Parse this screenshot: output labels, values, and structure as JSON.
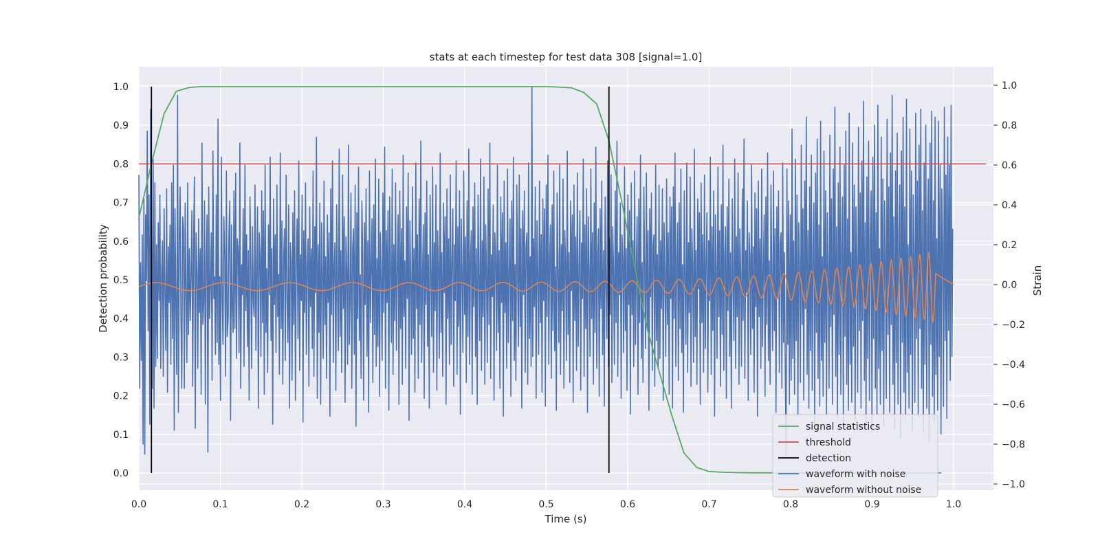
{
  "chart_data": {
    "type": "line",
    "title": "stats at each timestep for test data 308 [signal=1.0]",
    "xlabel": "Time (s)",
    "ylabel": "Detection probability",
    "y2label": "Strain",
    "xlim": [
      0.0,
      1.05
    ],
    "ylim": [
      -0.045,
      1.05
    ],
    "y2lim": [
      -1.03,
      1.1
    ],
    "xticks": [
      "0.0",
      "0.1",
      "0.2",
      "0.3",
      "0.4",
      "0.5",
      "0.6",
      "0.7",
      "0.8",
      "0.9",
      "1.0"
    ],
    "yticks": [
      "0.0",
      "0.1",
      "0.2",
      "0.3",
      "0.4",
      "0.5",
      "0.6",
      "0.7",
      "0.8",
      "0.9",
      "1.0"
    ],
    "y2ticks": [
      "−1.0",
      "−0.8",
      "−0.6",
      "−0.4",
      "−0.2",
      "0.0",
      "0.2",
      "0.4",
      "0.6",
      "0.8",
      "1.0"
    ],
    "grid": true,
    "legend_position": "lower-right",
    "colors": {
      "background": "#eaeaf2",
      "grid": "#ffffff",
      "signal_statistics": "#55a868",
      "threshold": "#c44e52",
      "detection": "#000000",
      "waveform_with_noise": "#4c72b0",
      "waveform_without_noise": "#dd8452"
    },
    "series": [
      {
        "name": "signal statistics",
        "axis": "left",
        "x": [
          0.0,
          0.0154,
          0.031,
          0.046,
          0.062,
          0.077,
          0.092,
          0.108,
          0.123,
          0.5,
          0.515,
          0.531,
          0.546,
          0.562,
          0.577,
          0.592,
          0.608,
          0.623,
          0.639,
          0.654,
          0.669,
          0.685,
          0.7,
          0.715,
          0.731,
          0.75,
          0.8,
          0.9,
          0.985
        ],
        "y": [
          0.66,
          0.8,
          0.93,
          0.988,
          0.998,
          1.0,
          1.0,
          1.0,
          1.0,
          1.0,
          0.999,
          0.997,
          0.985,
          0.955,
          0.86,
          0.71,
          0.54,
          0.38,
          0.26,
          0.15,
          0.052,
          0.014,
          0.004,
          0.002,
          0.001,
          0.0005,
          0.0003,
          0.0002,
          0.0002
        ]
      },
      {
        "name": "threshold",
        "axis": "left",
        "x": [
          0.0,
          1.04
        ],
        "y": [
          0.8,
          0.8
        ]
      },
      {
        "name": "detection",
        "axis": "left",
        "vlines": [
          0.0154,
          0.577
        ],
        "ymin": 0.0,
        "ymax": 1.0
      },
      {
        "name": "waveform with noise",
        "axis": "right",
        "x_start": 0.0,
        "x_end": 0.999,
        "y": [
          0.55,
          -0.52,
          0.11,
          -0.38,
          0.25,
          -0.8,
          0.43,
          -0.85,
          0.35,
          0.02,
          0.77,
          -0.23,
          0.45,
          -0.7,
          0.88,
          0.28,
          -0.52,
          0.63,
          -0.62,
          0.51,
          -0.41,
          0.2,
          -0.37,
          0.31,
          -0.08,
          0.45,
          -0.42,
          0.06,
          0.22,
          -0.46,
          0.38,
          -0.05,
          -0.33,
          0.48,
          -0.54,
          0.19,
          -0.09,
          0.3,
          -0.4,
          0.51,
          -0.27,
          0.6,
          -0.73,
          0.38,
          -0.12,
          -0.45,
          0.95,
          -0.64,
          0.23,
          0.49,
          -0.15,
          -0.52,
          0.34,
          0.28,
          -0.52,
          0.41,
          -0.06,
          -0.39,
          0.51,
          -0.25,
          0.18,
          -0.18,
          0.04,
          0.37,
          -0.51,
          0.22,
          0.54,
          -0.72,
          0.26,
          0.06,
          -0.42,
          0.33,
          -0.14,
          0.18,
          -0.55,
          0.71,
          -0.2,
          -0.1,
          0.42,
          -0.6,
          0.12,
          0.35,
          -0.84,
          0.49,
          -0.17,
          0.01,
          0.26,
          -0.48,
          0.67,
          -0.07,
          0.04,
          -0.35,
          0.45,
          -0.29,
          0.83,
          -0.4,
          0.04,
          -0.58,
          0.64,
          -0.08,
          -0.3,
          0.34,
          0.14,
          -0.46,
          0.57,
          -0.26,
          -0.18,
          0.25,
          0.42,
          -0.68,
          0.3,
          -0.12,
          -0.24,
          0.47,
          -0.22,
          0.56,
          -0.37,
          0.23,
          0.17,
          -0.34,
          0.71,
          -0.52,
          0.1,
          -0.05,
          0.38,
          -0.41,
          0.6,
          -0.13,
          0.25,
          -0.31,
          0.17,
          -0.58,
          0.44,
          0.1,
          -0.42,
          0.29,
          -0.09,
          -0.16,
          0.5,
          -0.33,
          0.07,
          0.39,
          -0.62,
          0.26,
          0.14,
          -0.36,
          0.47,
          -0.19,
          0.37,
          -0.55,
          0.6,
          -0.24,
          0.08,
          -0.44,
          0.3,
          -0.05,
          0.64,
          -0.28,
          0.18,
          -0.7,
          0.43,
          -0.1,
          0.25,
          -0.34,
          0.5,
          -0.16,
          0.05,
          -0.45,
          0.66,
          -0.22,
          0.32,
          -0.5,
          0.14,
          0.28,
          -0.38,
          0.55,
          -0.07,
          -0.29,
          0.4,
          -0.62,
          0.21,
          0.12,
          -0.48,
          0.36,
          -0.2,
          0.47,
          -0.58,
          0.1,
          0.33,
          -0.27,
          0.62,
          -0.43,
          0.15,
          -0.08,
          0.45,
          -0.69,
          0.27,
          -0.14,
          0.51,
          -0.35,
          0.08,
          0.23,
          -0.51,
          0.39,
          -0.11,
          0.18,
          -0.32,
          0.57,
          -0.46,
          0.29,
          -0.04,
          0.74,
          -0.57,
          0.2,
          -0.24,
          0.41,
          -0.6,
          0.31,
          0.06,
          -0.37,
          0.52,
          -0.2,
          0.14,
          -0.47,
          0.35,
          -0.09,
          0.26,
          -0.66,
          0.48,
          -0.15,
          0.62,
          -0.39,
          0.1,
          0.21,
          -0.53,
          0.4,
          -0.02,
          -0.33,
          0.68,
          -0.26,
          0.17,
          -0.44,
          0.55,
          -0.12,
          0.34,
          -0.59,
          0.24,
          0.08,
          -0.4,
          0.7,
          -0.3,
          -0.06,
          0.46,
          -0.52,
          0.19,
          0.28,
          -0.35,
          0.5,
          -0.71,
          0.36,
          -0.17,
          0.59,
          -0.28,
          0.05,
          -0.47,
          0.42,
          0.16,
          -0.58,
          0.31,
          -0.1,
          0.48,
          -0.36,
          0.22,
          -0.64,
          0.57,
          -0.19,
          0.09,
          0.33,
          -0.49,
          0.4,
          -0.25,
          0.63,
          -0.41,
          0.13,
          -0.31,
          0.53,
          -0.56,
          0.26,
          0.02,
          -0.38,
          0.46,
          -0.14,
          0.69,
          -0.52,
          0.27,
          -0.09,
          0.37,
          -0.63,
          0.44,
          0.1,
          -0.29,
          0.58,
          -0.45,
          0.2,
          -0.18,
          0.51,
          -0.33,
          0.07,
          0.35,
          -0.6,
          0.47,
          -0.22,
          0.28,
          -0.5,
          0.65,
          -0.16,
          0.12,
          -0.42,
          0.39,
          -0.07,
          0.56,
          -0.68,
          0.32,
          0.03,
          -0.35,
          0.49,
          -0.27,
          0.18,
          -0.54,
          0.61,
          -0.12,
          0.25,
          -0.47,
          0.43,
          -0.2,
          0.72,
          -0.39,
          0.06,
          0.3,
          -0.57,
          0.36,
          -0.1,
          0.52,
          -0.31,
          0.15,
          -0.62,
          0.45,
          0.04,
          -0.26,
          0.59,
          -0.44,
          0.21,
          -0.13,
          0.5,
          -0.53,
          0.27,
          0.09,
          -0.37,
          0.66,
          -0.24,
          0.16,
          -0.46,
          0.41,
          -0.04,
          0.34,
          -0.6,
          0.48,
          -0.17,
          0.23,
          -0.4,
          0.55,
          -0.3,
          0.11,
          0.38,
          -0.51,
          0.2,
          -0.08,
          0.62,
          -0.45,
          0.29,
          -0.21,
          0.47,
          -0.65,
          0.33,
          0.05,
          -0.34,
          0.57,
          -0.15,
          0.24,
          -0.49,
          0.42,
          -0.26,
          0.68,
          -0.4,
          0.13,
          0.27,
          -0.55,
          0.39,
          -0.11,
          0.51,
          -0.36,
          0.18,
          -0.6,
          0.45,
          0.02,
          -0.28,
          0.63,
          -0.43,
          0.22,
          -0.16,
          0.54,
          -0.5,
          0.3,
          0.08,
          -0.39,
          0.48,
          -0.2,
          0.71,
          -0.47,
          0.15,
          -0.06,
          0.4,
          -0.58,
          0.26,
          0.12,
          -0.33,
          0.6,
          -0.24,
          0.17,
          -0.52,
          0.44,
          -0.09,
          0.36,
          -0.66,
          0.52,
          -0.14,
          0.21,
          -0.42,
          0.58,
          -0.29,
          0.07,
          0.33,
          -0.56,
          0.42,
          -0.18,
          0.64,
          -0.38,
          0.1,
          -0.48,
          0.5,
          0.04,
          -0.31,
          0.55,
          -0.21,
          0.28,
          -0.62,
          0.37,
          -0.05,
          0.47,
          -0.44,
          0.19,
          0.26,
          -0.5,
          0.61,
          -0.27,
          0.14,
          -0.41,
          0.99,
          -0.36,
          0.23,
          -0.11,
          0.49,
          -0.57,
          0.32,
          0.06,
          -0.35,
          0.52,
          -0.19,
          0.25,
          -0.54,
          0.43,
          -0.08,
          0.38,
          -0.61,
          0.5,
          -0.16,
          0.65,
          -0.4,
          0.12,
          0.3,
          -0.47,
          0.4,
          -0.23,
          0.57,
          -0.33,
          0.09,
          -0.63,
          0.46,
          0.03,
          -0.29,
          0.6,
          -0.45,
          0.2,
          -0.13,
          0.53,
          -0.52,
          0.27,
          0.11,
          -0.38,
          0.67,
          -0.25,
          0.16,
          -0.49,
          0.42,
          -0.03,
          0.35,
          -0.59,
          0.5,
          -0.18,
          0.24,
          -0.43,
          0.56,
          -0.31,
          0.1,
          0.37,
          -0.53,
          0.21,
          -0.07,
          0.63,
          -0.46,
          0.3,
          -0.22,
          0.48,
          -0.64,
          0.34,
          0.06,
          -0.36,
          0.58,
          -0.17,
          0.26,
          -0.5,
          0.41,
          -0.24,
          0.69,
          -0.42,
          0.14,
          0.28,
          -0.56,
          0.38,
          -0.12,
          0.52,
          -0.35,
          0.17,
          -0.61,
          0.44,
          0.01,
          -0.27,
          0.62,
          -0.41,
          0.23,
          -0.15,
          0.55,
          -0.49,
          0.29,
          0.07,
          -0.4,
          0.47,
          -0.19,
          0.72,
          -0.46,
          0.16,
          -0.05,
          0.41,
          -0.57,
          0.25,
          0.13,
          -0.34,
          0.59,
          -0.23,
          0.18,
          -0.53,
          0.45,
          -0.1,
          0.37,
          -0.65,
          0.51,
          -0.15,
          0.22,
          -0.41,
          0.57,
          -0.3,
          0.08,
          0.34,
          -0.55,
          0.43,
          -0.19,
          0.65,
          -0.37,
          0.11,
          -0.49,
          0.49,
          0.05,
          -0.32,
          0.56,
          -0.22,
          0.27,
          -0.63,
          0.38,
          -0.06,
          0.46,
          -0.43,
          0.2,
          0.25,
          -0.51,
          0.6,
          -0.28,
          0.15,
          -0.42,
          0.5,
          -0.37,
          0.22,
          -0.12,
          0.48,
          -0.58,
          0.31,
          0.05,
          -0.36,
          0.53,
          -0.2,
          0.26,
          -0.55,
          0.44,
          -0.07,
          0.39,
          -0.62,
          0.49,
          -0.17,
          0.66,
          -0.41,
          0.13,
          0.31,
          -0.48,
          0.41,
          -0.22,
          0.58,
          -0.34,
          0.1,
          -0.64,
          0.47,
          0.02,
          -0.3,
          0.61,
          -0.44,
          0.21,
          -0.14,
          0.54,
          -0.51,
          0.28,
          0.1,
          -0.39,
          0.68,
          -0.26,
          0.17,
          -0.5,
          0.43,
          -0.02,
          0.36,
          -0.6,
          0.51,
          -0.19,
          0.25,
          -0.44,
          0.55,
          -0.32,
          0.11,
          0.36,
          -0.54,
          0.22,
          -0.08,
          0.64,
          -0.45,
          0.29,
          -0.23,
          0.47,
          -0.66,
          0.35,
          0.07,
          -0.37,
          0.59,
          -0.16,
          0.27,
          -0.51,
          0.4,
          -0.25,
          0.7,
          -0.43,
          0.15,
          0.29,
          -0.57,
          0.39,
          -0.13,
          0.53,
          -0.36,
          0.16,
          -0.62,
          0.43,
          0.0,
          -0.28,
          0.63,
          -0.42,
          0.24,
          -0.16,
          0.56,
          -0.5,
          0.28,
          0.06,
          -0.41,
          0.48,
          -0.18,
          0.73,
          -0.47,
          0.17,
          -0.04,
          0.42,
          -0.58,
          0.26,
          0.14,
          -0.35,
          0.6,
          -0.22,
          0.19,
          -0.54,
          0.46,
          -0.11,
          0.38,
          -0.66,
          0.52,
          -0.16,
          0.23,
          -0.42,
          0.58,
          -0.31,
          0.09,
          0.35,
          -0.56,
          0.44,
          -0.2,
          0.66,
          -0.38,
          0.12,
          -0.5,
          0.5,
          0.06,
          -0.33,
          0.57,
          -0.23,
          0.28,
          -0.64,
          0.39,
          -0.07,
          0.47,
          -0.44,
          0.21,
          0.26,
          -0.52,
          0.61,
          -0.29,
          0.16,
          -0.43,
          -0.86,
          0.58,
          -0.3,
          0.42,
          -0.6,
          0.35,
          -0.48,
          0.78,
          -0.37,
          0.22,
          -0.55,
          0.63,
          -0.28,
          0.45,
          -0.66,
          0.31,
          0.07,
          -0.49,
          0.7,
          -0.2,
          0.38,
          -0.58,
          0.52,
          -0.12,
          0.84,
          -0.45,
          0.27,
          -0.62,
          0.49,
          -0.33,
          0.65,
          -0.53,
          0.18,
          0.41,
          -0.7,
          0.56,
          -0.24,
          0.73,
          -0.47,
          0.3,
          -0.61,
          0.82,
          -0.38,
          0.14,
          -0.56,
          0.67,
          -0.29,
          0.47,
          -0.65,
          0.36,
          0.1,
          -0.52,
          0.75,
          -0.21,
          0.43,
          -0.6,
          0.58,
          -0.15,
          0.89,
          -0.46,
          0.29,
          -0.67,
          0.51,
          -0.35,
          0.69,
          -0.55,
          0.2,
          0.44,
          -0.72,
          0.6,
          -0.26,
          0.77,
          -0.5,
          0.33,
          -0.63,
          0.86,
          -0.4,
          0.16,
          -0.59,
          0.71,
          -0.31,
          0.5,
          -0.68,
          0.39,
          0.12,
          -0.54,
          0.79,
          -0.23,
          0.46,
          -0.62,
          0.62,
          -0.18,
          0.92,
          -0.48,
          0.31,
          -0.7,
          0.54,
          -0.37,
          0.72,
          -0.58,
          0.22,
          0.47,
          -0.74,
          0.64,
          -0.27,
          0.8,
          -0.52,
          0.36,
          -0.65,
          0.9,
          -0.42,
          0.18,
          -0.6,
          0.74,
          -0.33,
          0.53,
          -0.71,
          0.42,
          0.14,
          -0.57,
          0.83,
          -0.25,
          0.49,
          -0.64,
          0.66,
          -0.2,
          0.95,
          -0.5,
          0.34,
          -0.72,
          0.57,
          -0.39,
          0.76,
          -0.6,
          0.25,
          0.5,
          -0.77,
          0.67,
          -0.29,
          0.84,
          -0.54,
          0.39,
          -0.67,
          0.93,
          -0.44,
          0.2,
          -0.62,
          0.78,
          -0.35,
          0.57,
          -0.73,
          0.45,
          0.17,
          -0.59,
          0.86,
          -0.27,
          0.52,
          -0.66,
          0.7,
          -0.22,
          0.88,
          -0.52,
          0.37,
          -0.74,
          0.61,
          -0.4,
          0.8,
          -0.62,
          0.28,
          0.53,
          -0.79,
          0.71,
          -0.3,
          0.87,
          -0.56,
          0.42,
          -0.69,
          0.84,
          -0.45,
          0.23,
          -0.63,
          0.82,
          -0.36,
          0.6,
          -0.75,
          0.48,
          0.2,
          -0.61,
          0.89,
          -0.28,
          0.55,
          -0.67,
          0.74,
          -0.23,
          0.6,
          -0.48,
          0.9,
          -0.36,
          0.28
        ]
      },
      {
        "name": "waveform without noise",
        "axis": "right",
        "chirp": {
          "t_start": 0.0,
          "t_end": 0.978,
          "t_flat_end": 1.0,
          "amp_start": 0.02,
          "amp_end": 0.18,
          "freq_start": 12,
          "freq_end": 95
        }
      }
    ]
  },
  "legend": {
    "items": [
      {
        "label": "signal statistics",
        "color": "#55a868"
      },
      {
        "label": "threshold",
        "color": "#c44e52"
      },
      {
        "label": "detection",
        "color": "#000000"
      },
      {
        "label": "waveform with noise",
        "color": "#4c72b0"
      },
      {
        "label": "waveform without noise",
        "color": "#dd8452"
      }
    ]
  }
}
